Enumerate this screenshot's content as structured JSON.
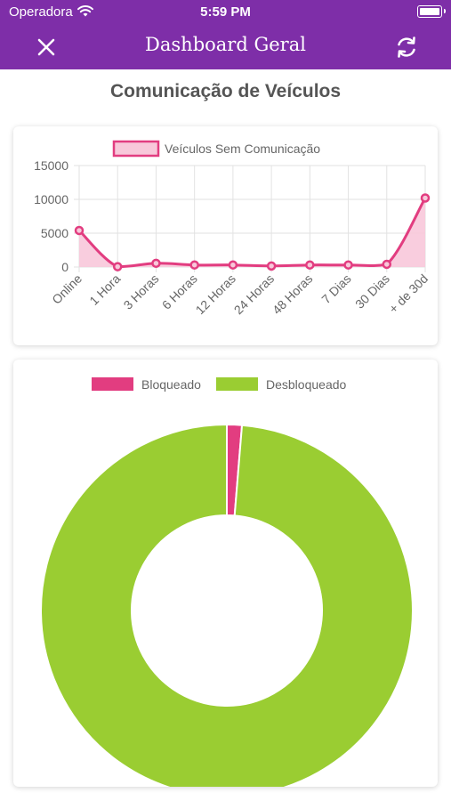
{
  "status_bar": {
    "carrier": "Operadora",
    "time": "5:59 PM"
  },
  "nav": {
    "title": "Dashboard Geral",
    "close_icon": "close-icon",
    "refresh_icon": "refresh-icon"
  },
  "section": {
    "title": "Comunicação de Veículos"
  },
  "colors": {
    "brand": "#7e2ea8",
    "pink": "#e23d80",
    "pink_fill": "#f8c8da",
    "green": "#9acd32"
  },
  "chart_data": [
    {
      "type": "area",
      "categories": [
        "Online",
        "1 Hora",
        "3 Horas",
        "6 Horas",
        "12 Horas",
        "24 Horas",
        "48 Horas",
        "7 Dias",
        "30 Dias",
        "+ de 30d"
      ],
      "series": [
        {
          "name": "Veículos Sem Comunicação",
          "values": [
            5400,
            50,
            550,
            300,
            300,
            150,
            300,
            300,
            400,
            10200
          ]
        }
      ],
      "ylim": [
        0,
        15000
      ],
      "yticks": [
        "0",
        "5000",
        "10000",
        "15000"
      ],
      "grid": true,
      "legend": "top"
    },
    {
      "type": "pie",
      "categories": [
        "Bloqueado",
        "Desbloqueado"
      ],
      "values": [
        1.3,
        98.7
      ],
      "colors": [
        "#e23d80",
        "#9acd32"
      ],
      "legend": "top"
    }
  ]
}
